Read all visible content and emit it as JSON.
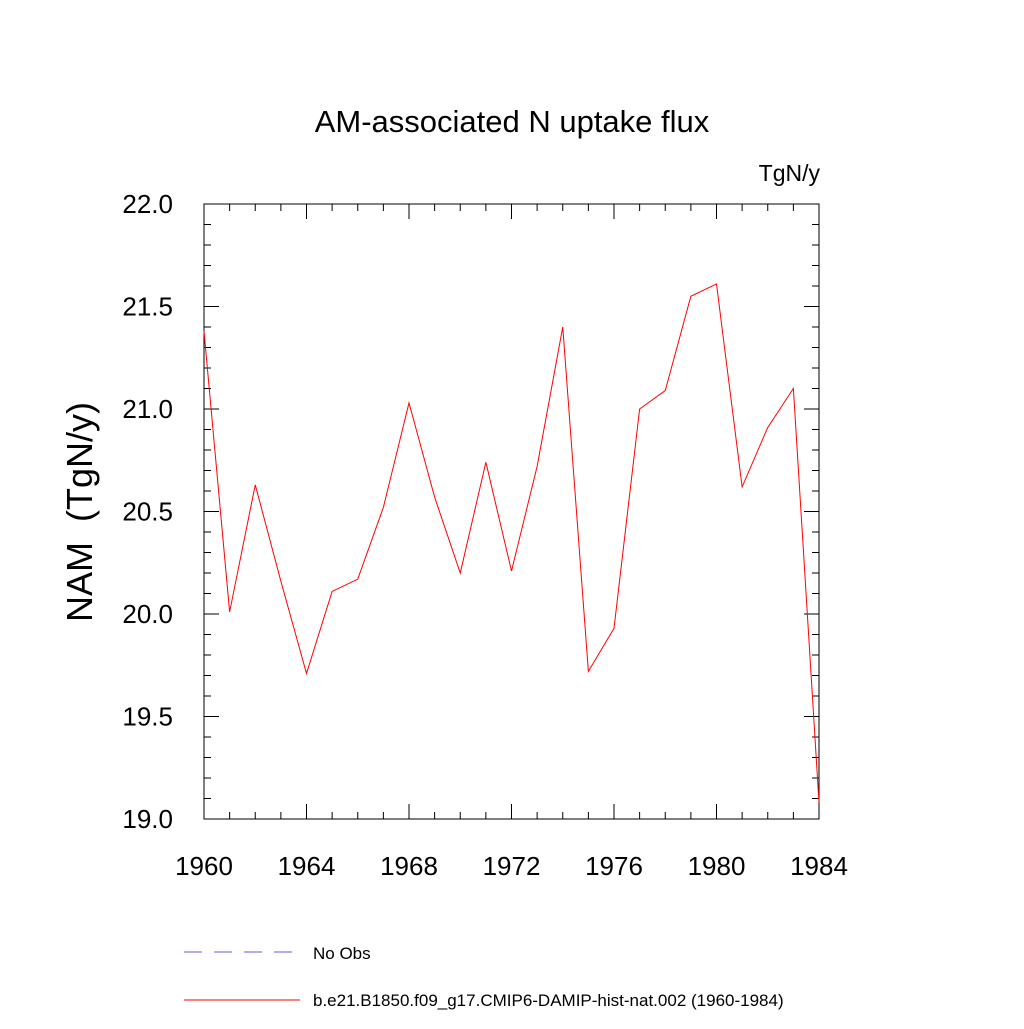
{
  "chart_data": {
    "type": "line",
    "title": "AM-associated N uptake flux",
    "units_label": "TgN/y",
    "ylabel": "NAM  (TgN/y)",
    "xlabel": "",
    "xlim": [
      1960,
      1984
    ],
    "ylim": [
      19.0,
      22.0
    ],
    "x_ticks": [
      1960,
      1964,
      1968,
      1972,
      1976,
      1980,
      1984
    ],
    "x_tick_labels": [
      "1960",
      "1964",
      "1968",
      "1972",
      "1976",
      "1980",
      "1984"
    ],
    "y_ticks": [
      19.0,
      19.5,
      20.0,
      20.5,
      21.0,
      21.5,
      22.0
    ],
    "y_tick_labels": [
      "19.0",
      "19.5",
      "20.0",
      "20.5",
      "21.0",
      "21.5",
      "22.0"
    ],
    "x_minor_step": 1,
    "y_minor_step": 0.1,
    "grid": false,
    "legend_placement": "bottom",
    "x": [
      1960,
      1961,
      1962,
      1963,
      1964,
      1965,
      1966,
      1967,
      1968,
      1969,
      1970,
      1971,
      1972,
      1973,
      1974,
      1975,
      1976,
      1977,
      1978,
      1979,
      1980,
      1981,
      1982,
      1983,
      1984
    ],
    "series": [
      {
        "name": "b.e21.B1850.f09_g17.CMIP6-DAMIP-hist-nat.002 (1960-1984)",
        "color": "#ff0000",
        "style": "solid",
        "values": [
          21.38,
          20.01,
          20.63,
          20.16,
          19.71,
          20.11,
          20.17,
          20.52,
          21.03,
          20.57,
          20.2,
          20.74,
          20.21,
          20.72,
          21.4,
          19.72,
          19.93,
          21.0,
          21.09,
          21.55,
          21.61,
          20.62,
          20.91,
          21.1,
          19.08
        ]
      }
    ],
    "legend": [
      {
        "label": "No Obs",
        "color": "#6a5acd",
        "style": "dashed"
      },
      {
        "label": "b.e21.B1850.f09_g17.CMIP6-DAMIP-hist-nat.002 (1960-1984)",
        "color": "#ff0000",
        "style": "solid"
      }
    ]
  }
}
